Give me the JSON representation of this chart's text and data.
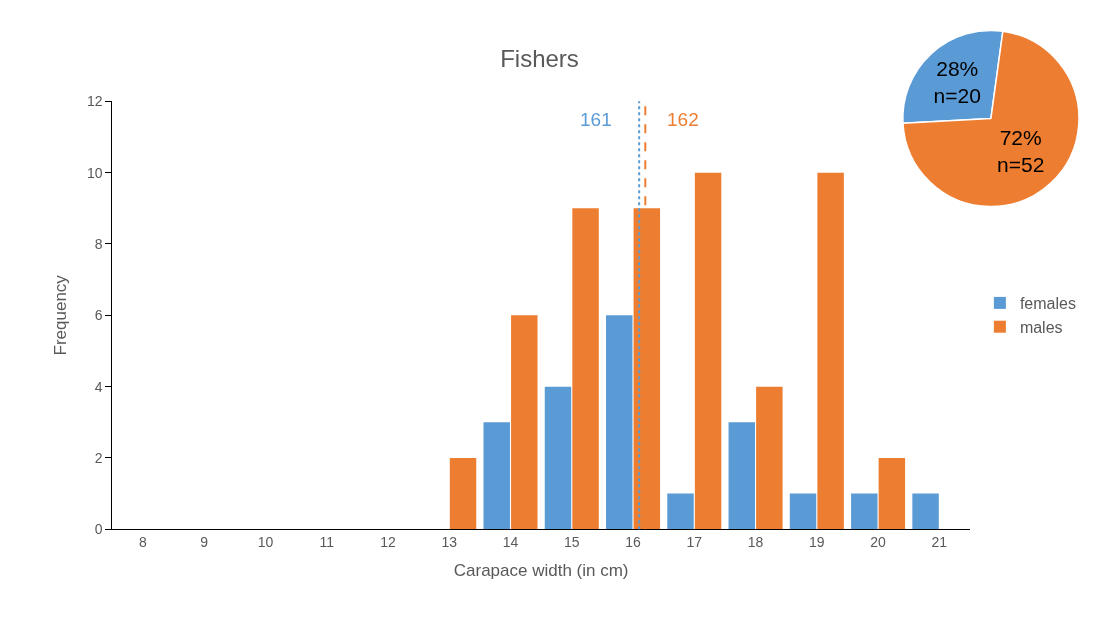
{
  "chart_data": [
    {
      "type": "bar",
      "title": "Fishers",
      "xlabel": "Carapace width (in cm)",
      "ylabel": "Frequency",
      "x": [
        8,
        9,
        10,
        11,
        12,
        13,
        14,
        15,
        16,
        17,
        18,
        19,
        20,
        21
      ],
      "xlim": [
        7.5,
        21.5
      ],
      "xticks": [
        8,
        9,
        10,
        11,
        12,
        13,
        14,
        15,
        16,
        17,
        18,
        19,
        20,
        21
      ],
      "ylim": [
        0,
        12
      ],
      "yticks": [
        0,
        2,
        4,
        6,
        8,
        10,
        12
      ],
      "legend": "right",
      "series": [
        {
          "name": "females",
          "color": "#5b9bd5",
          "values": [
            0,
            0,
            0,
            0,
            0,
            0,
            3,
            4,
            6,
            1,
            3,
            1,
            1,
            1
          ]
        },
        {
          "name": "males",
          "color": "#ed7d31",
          "values": [
            0,
            0,
            0,
            0,
            0,
            2,
            6,
            9,
            9,
            10,
            4,
            10,
            2,
            0
          ]
        }
      ],
      "ref_lines": [
        {
          "axis": "x",
          "value": 16.1,
          "color": "#5b9bd5",
          "line_style": "dotted"
        },
        {
          "axis": "x",
          "value": 16.2,
          "color": "#ed7d31",
          "line_style": "dashed"
        }
      ],
      "annotations": [
        {
          "text": "161",
          "x": 16.1,
          "y": 11.5
        },
        {
          "text": "162",
          "x": 16.2,
          "y": 11.5
        }
      ]
    },
    {
      "type": "pie",
      "categories": [
        null,
        null
      ],
      "values": [
        28,
        72
      ],
      "colors": [
        "#5b9bd5",
        "#ed7d31"
      ],
      "value_labels": [
        "28%\nn=20",
        "72%\nn=52"
      ]
    }
  ]
}
